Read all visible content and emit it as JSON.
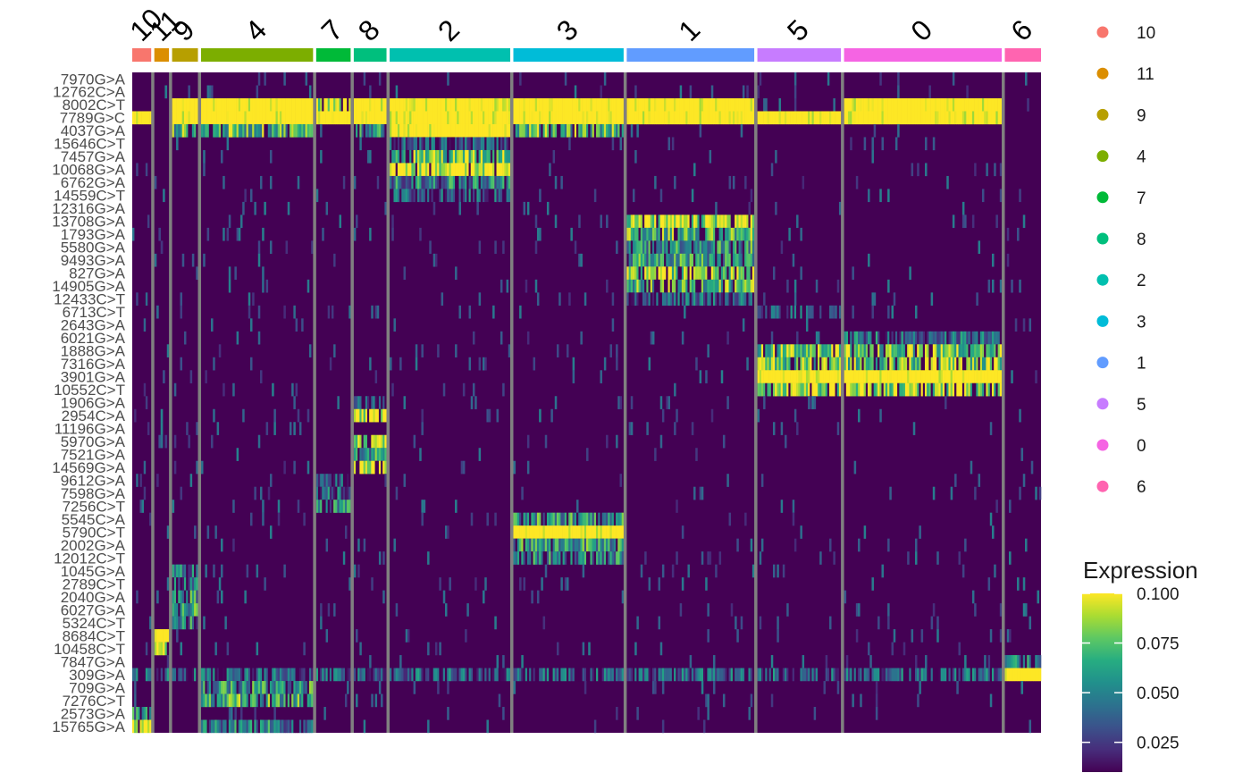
{
  "chart_data": {
    "type": "heatmap",
    "title": "",
    "xlabel": "",
    "ylabel": "",
    "clusters": [
      {
        "label": "10",
        "color": "#F8766D",
        "cells": 22
      },
      {
        "label": "11",
        "color": "#DB8E00",
        "cells": 17
      },
      {
        "label": "9",
        "color": "#B79F00",
        "cells": 30
      },
      {
        "label": "4",
        "color": "#7CAE00",
        "cells": 130
      },
      {
        "label": "7",
        "color": "#00BA38",
        "cells": 40
      },
      {
        "label": "8",
        "color": "#00BF7D",
        "cells": 38
      },
      {
        "label": "2",
        "color": "#00C0AF",
        "cells": 140
      },
      {
        "label": "3",
        "color": "#00BCD8",
        "cells": 128
      },
      {
        "label": "1",
        "color": "#619CFF",
        "cells": 148
      },
      {
        "label": "5",
        "color": "#C77CFF",
        "cells": 97
      },
      {
        "label": "0",
        "color": "#F564E3",
        "cells": 183
      },
      {
        "label": "6",
        "color": "#FF64B0",
        "cells": 42
      }
    ],
    "features": [
      "7970G>A",
      "12762C>A",
      "8002C>T",
      "7789G>C",
      "4037G>A",
      "15646C>T",
      "7457G>A",
      "10068G>A",
      "6762G>A",
      "14559C>T",
      "12316G>A",
      "13708G>A",
      "1793G>A",
      "5580G>A",
      "9493G>A",
      "827G>A",
      "14905G>A",
      "12433C>T",
      "6713C>T",
      "2643G>A",
      "6021G>A",
      "1888G>A",
      "7316G>A",
      "3901G>A",
      "10552C>T",
      "1906G>A",
      "2954C>A",
      "11196G>A",
      "5970G>A",
      "7521G>A",
      "14569G>A",
      "9612G>A",
      "7598G>A",
      "7256C>T",
      "5545C>A",
      "5790C>T",
      "2002G>A",
      "12012C>T",
      "1045G>A",
      "2789C>T",
      "2040G>A",
      "6027G>A",
      "5324C>T",
      "8684C>T",
      "10458C>T",
      "7847G>A",
      "309G>A",
      "709G>A",
      "7276C>T",
      "2573G>A",
      "15765G>A"
    ],
    "high_expression_blocks": [
      {
        "feature": "7789G>C",
        "clusters": [
          "10",
          "4",
          "7",
          "8",
          "2",
          "3",
          "1",
          "5",
          "0"
        ],
        "level": 0.1
      },
      {
        "feature": "7789G>C",
        "clusters": [
          "9"
        ],
        "level": 0.1
      },
      {
        "feature": "8002C>T",
        "clusters": [
          "9",
          "4",
          "8",
          "2",
          "3"
        ],
        "level": 0.1
      },
      {
        "feature": "8002C>T",
        "clusters": [
          "7"
        ],
        "level": 0.09
      },
      {
        "feature": "8002C>T",
        "clusters": [
          "1",
          "0"
        ],
        "level": 0.1
      },
      {
        "feature": "4037G>A",
        "clusters": [
          "2"
        ],
        "level": 0.1
      },
      {
        "feature": "4037G>A",
        "clusters": [
          "9",
          "4",
          "3"
        ],
        "level": 0.06
      },
      {
        "feature": "4037G>A",
        "clusters": [
          "8"
        ],
        "level": 0.05
      },
      {
        "feature": "15646C>T",
        "clusters": [
          "2"
        ],
        "level": 0.02
      },
      {
        "feature": "7457G>A",
        "clusters": [
          "2"
        ],
        "level": 0.07
      },
      {
        "feature": "10068G>A",
        "clusters": [
          "2"
        ],
        "level": 0.09
      },
      {
        "feature": "6762G>A",
        "clusters": [
          "2"
        ],
        "level": 0.04
      },
      {
        "feature": "14559C>T",
        "clusters": [
          "2"
        ],
        "level": 0.025
      },
      {
        "feature": "13708G>A",
        "clusters": [
          "1"
        ],
        "level": 0.08
      },
      {
        "feature": "1793G>A",
        "clusters": [
          "1"
        ],
        "level": 0.06
      },
      {
        "feature": "5580G>A",
        "clusters": [
          "1"
        ],
        "level": 0.05
      },
      {
        "feature": "9493G>A",
        "clusters": [
          "1"
        ],
        "level": 0.05
      },
      {
        "feature": "827G>A",
        "clusters": [
          "1"
        ],
        "level": 0.08
      },
      {
        "feature": "14905G>A",
        "clusters": [
          "1"
        ],
        "level": 0.06
      },
      {
        "feature": "12433C>T",
        "clusters": [
          "1"
        ],
        "level": 0.025
      },
      {
        "feature": "6713C>T",
        "clusters": [
          "5"
        ],
        "level": 0.02
      },
      {
        "feature": "6021G>A",
        "clusters": [
          "0"
        ],
        "level": 0.03
      },
      {
        "feature": "1888G>A",
        "clusters": [
          "5",
          "0"
        ],
        "level": 0.07
      },
      {
        "feature": "7316G>A",
        "clusters": [
          "5",
          "0"
        ],
        "level": 0.07
      },
      {
        "feature": "3901G>A",
        "clusters": [
          "5",
          "0"
        ],
        "level": 0.1
      },
      {
        "feature": "10552C>T",
        "clusters": [
          "5",
          "0"
        ],
        "level": 0.08
      },
      {
        "feature": "1906G>A",
        "clusters": [
          "8"
        ],
        "level": 0.02
      },
      {
        "feature": "2954C>A",
        "clusters": [
          "8"
        ],
        "level": 0.09
      },
      {
        "feature": "5970G>A",
        "clusters": [
          "8"
        ],
        "level": 0.08
      },
      {
        "feature": "7521G>A",
        "clusters": [
          "8"
        ],
        "level": 0.05
      },
      {
        "feature": "14569G>A",
        "clusters": [
          "8"
        ],
        "level": 0.09
      },
      {
        "feature": "9612G>A",
        "clusters": [
          "7"
        ],
        "level": 0.02
      },
      {
        "feature": "7598G>A",
        "clusters": [
          "7"
        ],
        "level": 0.03
      },
      {
        "feature": "7256C>T",
        "clusters": [
          "7"
        ],
        "level": 0.04
      },
      {
        "feature": "5545C>A",
        "clusters": [
          "3"
        ],
        "level": 0.05
      },
      {
        "feature": "5790C>T",
        "clusters": [
          "3"
        ],
        "level": 0.1
      },
      {
        "feature": "2002G>A",
        "clusters": [
          "3"
        ],
        "level": 0.05
      },
      {
        "feature": "12012C>T",
        "clusters": [
          "3"
        ],
        "level": 0.04
      },
      {
        "feature": "1045G>A",
        "clusters": [
          "9"
        ],
        "level": 0.04
      },
      {
        "feature": "2789C>T",
        "clusters": [
          "9"
        ],
        "level": 0.03
      },
      {
        "feature": "2040G>A",
        "clusters": [
          "9"
        ],
        "level": 0.05
      },
      {
        "feature": "6027G>A",
        "clusters": [
          "9"
        ],
        "level": 0.05
      },
      {
        "feature": "5324C>T",
        "clusters": [
          "9"
        ],
        "level": 0.04
      },
      {
        "feature": "8684C>T",
        "clusters": [
          "11"
        ],
        "level": 0.1
      },
      {
        "feature": "10458C>T",
        "clusters": [
          "11"
        ],
        "level": 0.09
      },
      {
        "feature": "7847G>A",
        "clusters": [
          "6"
        ],
        "level": 0.04
      },
      {
        "feature": "309G>A",
        "clusters": [
          "6"
        ],
        "level": 0.1
      },
      {
        "feature": "309G>A",
        "clusters": [
          "10",
          "11",
          "9",
          "4",
          "7",
          "8",
          "2",
          "3",
          "1",
          "5",
          "0"
        ],
        "level": 0.025
      },
      {
        "feature": "709G>A",
        "clusters": [
          "4"
        ],
        "level": 0.05
      },
      {
        "feature": "7276C>T",
        "clusters": [
          "4"
        ],
        "level": 0.06
      },
      {
        "feature": "2573G>A",
        "clusters": [
          "10"
        ],
        "level": 0.04
      },
      {
        "feature": "15765G>A",
        "clusters": [
          "10"
        ],
        "level": 0.09
      },
      {
        "feature": "15765G>A",
        "clusters": [
          "4"
        ],
        "level": 0.04
      }
    ],
    "legend_clusters": {
      "order": [
        "10",
        "11",
        "9",
        "4",
        "7",
        "8",
        "2",
        "3",
        "1",
        "5",
        "0",
        "6"
      ],
      "placement": "right"
    },
    "colorbar": {
      "title": "Expression",
      "range": [
        0.01,
        0.1
      ],
      "ticks": [
        "0.100",
        "0.075",
        "0.050",
        "0.025"
      ],
      "tick_values": [
        0.1,
        0.075,
        0.05,
        0.025
      ],
      "palette": [
        "#440154",
        "#472D7B",
        "#3B528B",
        "#2C728E",
        "#21908C",
        "#27AD81",
        "#5DC863",
        "#AADC32",
        "#FDE725"
      ],
      "placement": "right-bottom"
    },
    "background_color": "#440154",
    "separator_color": "#808080"
  }
}
